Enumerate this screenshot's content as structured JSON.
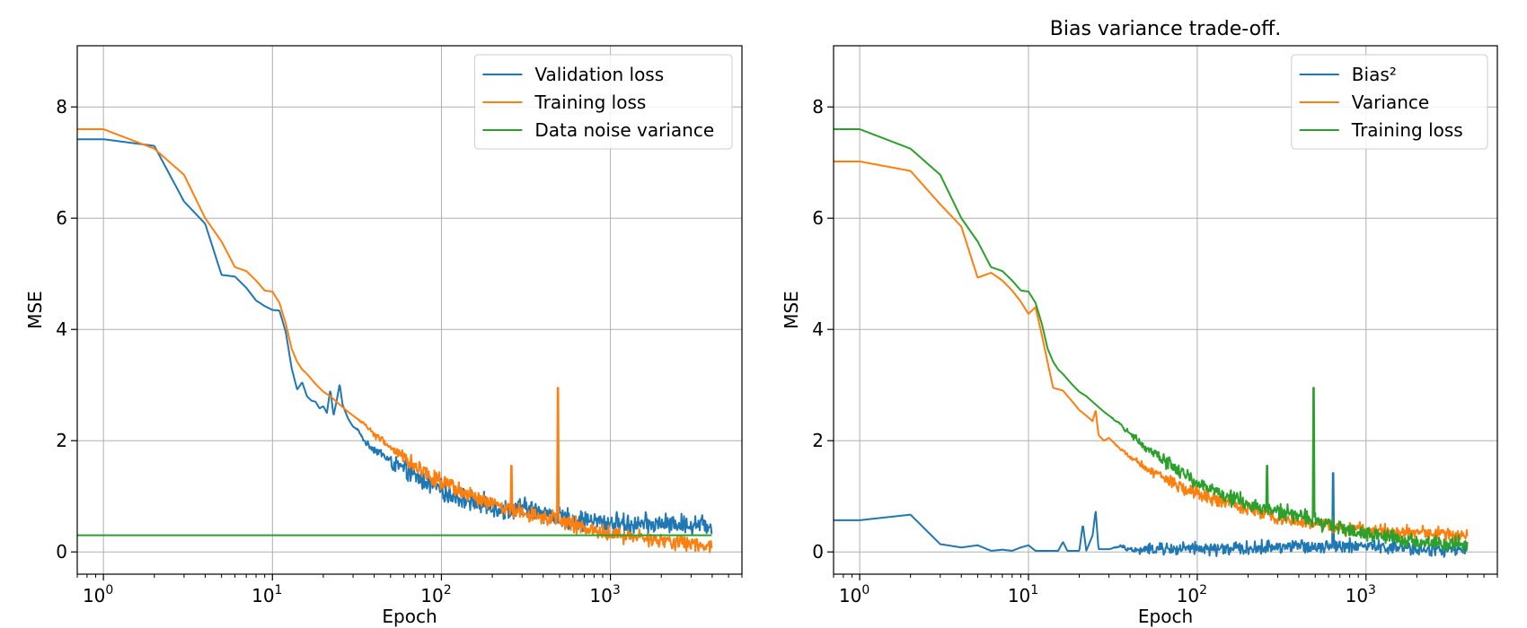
{
  "chart_data": [
    {
      "type": "line",
      "title": "",
      "xlabel": "Epoch",
      "ylabel": "MSE",
      "xscale": "log",
      "xlim": [
        0.7,
        6000
      ],
      "ylim": [
        -0.4,
        9.1
      ],
      "xticks": [
        {
          "value": 1,
          "base": "10",
          "exp": "0"
        },
        {
          "value": 10,
          "base": "10",
          "exp": "1"
        },
        {
          "value": 100,
          "base": "10",
          "exp": "2"
        },
        {
          "value": 1000,
          "base": "10",
          "exp": "3"
        }
      ],
      "yticks": [
        "0",
        "2",
        "4",
        "6",
        "8"
      ],
      "grid": true,
      "legend_position": "top-right",
      "series": [
        {
          "name": "Validation loss",
          "color": "#1f77b4",
          "points": [
            [
              0.7,
              7.42
            ],
            [
              1,
              7.42
            ],
            [
              2,
              7.3
            ],
            [
              3,
              6.3
            ],
            [
              4,
              5.9
            ],
            [
              5,
              4.98
            ],
            [
              6,
              4.95
            ],
            [
              7,
              4.75
            ],
            [
              8,
              4.52
            ],
            [
              9,
              4.42
            ],
            [
              10,
              4.35
            ],
            [
              11,
              4.34
            ],
            [
              12,
              3.95
            ],
            [
              13,
              3.3
            ],
            [
              14,
              2.92
            ],
            [
              15,
              3.05
            ],
            [
              16,
              2.8
            ],
            [
              17,
              2.72
            ],
            [
              18,
              2.7
            ],
            [
              19,
              2.58
            ],
            [
              20,
              2.62
            ],
            [
              21,
              2.5
            ],
            [
              22,
              2.92
            ],
            [
              23,
              2.45
            ],
            [
              24,
              2.72
            ],
            [
              25,
              3.02
            ],
            [
              26,
              2.65
            ],
            [
              28,
              2.4
            ],
            [
              30,
              2.25
            ],
            [
              32,
              2.2
            ],
            [
              34,
              2.05
            ],
            [
              36,
              1.95
            ],
            [
              40,
              1.85
            ],
            [
              45,
              1.75
            ],
            [
              50,
              1.62
            ],
            [
              60,
              1.48
            ],
            [
              70,
              1.36
            ],
            [
              80,
              1.28
            ],
            [
              100,
              1.1
            ],
            [
              120,
              1.0
            ],
            [
              150,
              0.92
            ],
            [
              200,
              0.82
            ],
            [
              250,
              0.75
            ],
            [
              300,
              0.8
            ],
            [
              400,
              0.72
            ],
            [
              500,
              0.62
            ],
            [
              600,
              0.58
            ],
            [
              800,
              0.55
            ],
            [
              1000,
              0.52
            ],
            [
              1500,
              0.5
            ],
            [
              2000,
              0.5
            ],
            [
              3000,
              0.5
            ],
            [
              4000,
              0.5
            ]
          ],
          "noise": {
            "from": 30,
            "to": 4000,
            "amplitude": 0.15
          }
        },
        {
          "name": "Training loss",
          "color": "#ff7f0e",
          "points": [
            [
              0.7,
              7.6
            ],
            [
              1,
              7.6
            ],
            [
              2,
              7.25
            ],
            [
              3,
              6.78
            ],
            [
              4,
              6.0
            ],
            [
              5,
              5.58
            ],
            [
              6,
              5.12
            ],
            [
              7,
              5.05
            ],
            [
              8,
              4.88
            ],
            [
              9,
              4.7
            ],
            [
              10,
              4.68
            ],
            [
              11,
              4.48
            ],
            [
              12,
              4.1
            ],
            [
              13,
              3.65
            ],
            [
              14,
              3.42
            ],
            [
              15,
              3.28
            ],
            [
              16,
              3.2
            ],
            [
              18,
              3.02
            ],
            [
              20,
              2.88
            ],
            [
              22,
              2.8
            ],
            [
              25,
              2.65
            ],
            [
              28,
              2.52
            ],
            [
              30,
              2.45
            ],
            [
              35,
              2.3
            ],
            [
              40,
              2.12
            ],
            [
              50,
              1.88
            ],
            [
              60,
              1.7
            ],
            [
              70,
              1.55
            ],
            [
              80,
              1.45
            ],
            [
              100,
              1.25
            ],
            [
              120,
              1.12
            ],
            [
              150,
              1.0
            ],
            [
              200,
              0.85
            ],
            [
              250,
              0.78
            ],
            [
              300,
              0.72
            ],
            [
              400,
              0.65
            ],
            [
              500,
              0.55
            ],
            [
              600,
              0.48
            ],
            [
              800,
              0.38
            ],
            [
              1000,
              0.33
            ],
            [
              1500,
              0.25
            ],
            [
              2000,
              0.19
            ],
            [
              3000,
              0.15
            ],
            [
              4000,
              0.12
            ]
          ],
          "noise": {
            "from": 30,
            "to": 4000,
            "amplitude": 0.12
          },
          "spikes": [
            [
              260,
              1.55
            ],
            [
              490,
              2.95
            ]
          ]
        },
        {
          "name": "Data noise variance",
          "color": "#2ca02c",
          "points": [
            [
              0.7,
              0.3
            ],
            [
              4000,
              0.3
            ]
          ]
        }
      ]
    },
    {
      "type": "line",
      "title": "Bias variance trade-off.",
      "xlabel": "Epoch",
      "ylabel": "MSE",
      "xscale": "log",
      "xlim": [
        0.7,
        6000
      ],
      "ylim": [
        -0.4,
        9.1
      ],
      "xticks": [
        {
          "value": 1,
          "base": "10",
          "exp": "0"
        },
        {
          "value": 10,
          "base": "10",
          "exp": "1"
        },
        {
          "value": 100,
          "base": "10",
          "exp": "2"
        },
        {
          "value": 1000,
          "base": "10",
          "exp": "3"
        }
      ],
      "yticks": [
        "0",
        "2",
        "4",
        "6",
        "8"
      ],
      "grid": true,
      "legend_position": "top-right",
      "series": [
        {
          "name": "Bias²",
          "color": "#1f77b4",
          "points": [
            [
              0.7,
              0.57
            ],
            [
              1,
              0.57
            ],
            [
              2,
              0.67
            ],
            [
              3,
              0.14
            ],
            [
              4,
              0.08
            ],
            [
              5,
              0.12
            ],
            [
              6,
              0.02
            ],
            [
              7,
              0.04
            ],
            [
              8,
              0.02
            ],
            [
              9,
              0.08
            ],
            [
              10,
              0.12
            ],
            [
              11,
              0.02
            ],
            [
              15,
              0.02
            ],
            [
              16,
              0.18
            ],
            [
              17,
              0.02
            ],
            [
              20,
              0.02
            ],
            [
              21,
              0.5
            ],
            [
              22,
              0.02
            ],
            [
              24,
              0.3
            ],
            [
              25,
              0.75
            ],
            [
              26,
              0.05
            ],
            [
              30,
              0.05
            ],
            [
              35,
              0.1
            ],
            [
              40,
              0.05
            ],
            [
              45,
              0.02
            ],
            [
              50,
              0.05
            ],
            [
              100,
              0.05
            ],
            [
              200,
              0.06
            ],
            [
              300,
              0.1
            ],
            [
              500,
              0.1
            ],
            [
              700,
              0.12
            ],
            [
              1000,
              0.1
            ],
            [
              2000,
              0.05
            ],
            [
              4000,
              0.03
            ]
          ],
          "noise": {
            "from": 30,
            "to": 4000,
            "amplitude": 0.1
          },
          "spikes": [
            [
              640,
              1.42
            ]
          ]
        },
        {
          "name": "Variance",
          "color": "#ff7f0e",
          "points": [
            [
              0.7,
              7.02
            ],
            [
              1,
              7.02
            ],
            [
              2,
              6.85
            ],
            [
              3,
              6.25
            ],
            [
              4,
              5.85
            ],
            [
              5,
              4.93
            ],
            [
              6,
              5.02
            ],
            [
              7,
              4.88
            ],
            [
              8,
              4.7
            ],
            [
              9,
              4.5
            ],
            [
              10,
              4.28
            ],
            [
              11,
              4.4
            ],
            [
              12,
              3.9
            ],
            [
              13,
              3.4
            ],
            [
              14,
              2.95
            ],
            [
              16,
              2.9
            ],
            [
              18,
              2.72
            ],
            [
              20,
              2.55
            ],
            [
              22,
              2.45
            ],
            [
              24,
              2.35
            ],
            [
              25,
              2.55
            ],
            [
              26,
              2.1
            ],
            [
              28,
              2.0
            ],
            [
              30,
              2.05
            ],
            [
              35,
              1.85
            ],
            [
              40,
              1.7
            ],
            [
              50,
              1.5
            ],
            [
              60,
              1.38
            ],
            [
              70,
              1.25
            ],
            [
              80,
              1.15
            ],
            [
              100,
              1.05
            ],
            [
              150,
              0.88
            ],
            [
              200,
              0.78
            ],
            [
              300,
              0.6
            ],
            [
              500,
              0.5
            ],
            [
              700,
              0.42
            ],
            [
              1000,
              0.4
            ],
            [
              2000,
              0.35
            ],
            [
              3000,
              0.32
            ],
            [
              4000,
              0.3
            ]
          ],
          "noise": {
            "from": 30,
            "to": 4000,
            "amplitude": 0.1
          }
        },
        {
          "name": "Training loss",
          "color": "#2ca02c",
          "points": [
            [
              0.7,
              7.6
            ],
            [
              1,
              7.6
            ],
            [
              2,
              7.25
            ],
            [
              3,
              6.78
            ],
            [
              4,
              6.0
            ],
            [
              5,
              5.58
            ],
            [
              6,
              5.12
            ],
            [
              7,
              5.05
            ],
            [
              8,
              4.88
            ],
            [
              9,
              4.7
            ],
            [
              10,
              4.68
            ],
            [
              11,
              4.48
            ],
            [
              12,
              4.1
            ],
            [
              13,
              3.65
            ],
            [
              14,
              3.42
            ],
            [
              15,
              3.28
            ],
            [
              16,
              3.2
            ],
            [
              18,
              3.02
            ],
            [
              20,
              2.88
            ],
            [
              22,
              2.8
            ],
            [
              25,
              2.65
            ],
            [
              28,
              2.52
            ],
            [
              30,
              2.45
            ],
            [
              35,
              2.3
            ],
            [
              40,
              2.12
            ],
            [
              50,
              1.88
            ],
            [
              60,
              1.7
            ],
            [
              70,
              1.55
            ],
            [
              80,
              1.45
            ],
            [
              100,
              1.25
            ],
            [
              120,
              1.12
            ],
            [
              150,
              1.0
            ],
            [
              200,
              0.85
            ],
            [
              250,
              0.78
            ],
            [
              300,
              0.72
            ],
            [
              400,
              0.65
            ],
            [
              500,
              0.55
            ],
            [
              600,
              0.48
            ],
            [
              800,
              0.38
            ],
            [
              1000,
              0.33
            ],
            [
              1500,
              0.25
            ],
            [
              2000,
              0.19
            ],
            [
              3000,
              0.15
            ],
            [
              4000,
              0.12
            ]
          ],
          "noise": {
            "from": 30,
            "to": 4000,
            "amplitude": 0.12
          },
          "spikes": [
            [
              260,
              1.55
            ],
            [
              490,
              2.95
            ]
          ]
        }
      ]
    }
  ]
}
